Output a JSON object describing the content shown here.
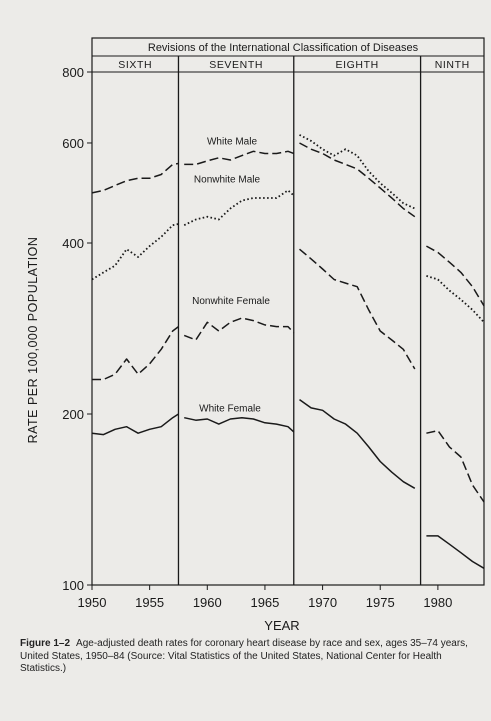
{
  "chart_data": {
    "type": "line",
    "title": "Revisions of the International Classification of Diseases",
    "xlabel": "YEAR",
    "ylabel": "RATE PER 100,000 POPULATION",
    "y_scale": "log",
    "xlim": [
      1950,
      1984
    ],
    "ylim": [
      100,
      800
    ],
    "x_ticks": [
      1950,
      1955,
      1960,
      1965,
      1970,
      1975,
      1980
    ],
    "x_tick_labels": [
      "1950",
      "1955",
      "1960",
      "1965",
      "1970",
      "1975",
      "1980"
    ],
    "y_ticks": [
      100,
      200,
      400,
      600,
      800
    ],
    "y_tick_labels": [
      "100",
      "200",
      "400",
      "600",
      "800"
    ],
    "revisions": [
      {
        "label": "SIXTH",
        "start": 1950,
        "end": 1957.5
      },
      {
        "label": "SEVENTH",
        "start": 1957.5,
        "end": 1967.5
      },
      {
        "label": "EIGHTH",
        "start": 1967.5,
        "end": 1978.5
      },
      {
        "label": "NINTH",
        "start": 1978.5,
        "end": 1984
      }
    ],
    "grid": false,
    "series": [
      {
        "name": "White Male",
        "style": "dashed",
        "segments": [
          [
            [
              1950,
              490
            ],
            [
              1951,
              495
            ],
            [
              1952,
              505
            ],
            [
              1953,
              515
            ],
            [
              1954,
              520
            ],
            [
              1955,
              520
            ],
            [
              1956,
              528
            ],
            [
              1957,
              550
            ],
            [
              1957.5,
              552
            ]
          ],
          [
            [
              1958,
              550
            ],
            [
              1959,
              550
            ],
            [
              1960,
              558
            ],
            [
              1961,
              565
            ],
            [
              1962,
              560
            ],
            [
              1963,
              570
            ],
            [
              1964,
              580
            ],
            [
              1965,
              575
            ],
            [
              1966,
              575
            ],
            [
              1967,
              580
            ],
            [
              1967.5,
              575
            ]
          ],
          [
            [
              1968,
              600
            ],
            [
              1969,
              585
            ],
            [
              1970,
              575
            ],
            [
              1971,
              560
            ],
            [
              1972,
              550
            ],
            [
              1973,
              540
            ],
            [
              1974,
              520
            ],
            [
              1975,
              500
            ],
            [
              1976,
              480
            ],
            [
              1977,
              460
            ],
            [
              1978,
              445
            ]
          ],
          [
            [
              1979,
              395
            ],
            [
              1980,
              385
            ],
            [
              1981,
              370
            ],
            [
              1982,
              355
            ],
            [
              1983,
              335
            ],
            [
              1984,
              310
            ]
          ]
        ]
      },
      {
        "name": "Nonwhite Male",
        "style": "dotted",
        "segments": [
          [
            [
              1950,
              345
            ],
            [
              1951,
              355
            ],
            [
              1952,
              365
            ],
            [
              1953,
              390
            ],
            [
              1954,
              378
            ],
            [
              1955,
              395
            ],
            [
              1956,
              410
            ],
            [
              1957,
              430
            ],
            [
              1957.5,
              432
            ]
          ],
          [
            [
              1958,
              430
            ],
            [
              1959,
              440
            ],
            [
              1960,
              445
            ],
            [
              1961,
              440
            ],
            [
              1962,
              460
            ],
            [
              1963,
              475
            ],
            [
              1964,
              480
            ],
            [
              1965,
              480
            ],
            [
              1966,
              480
            ],
            [
              1967,
              495
            ],
            [
              1967.5,
              485
            ]
          ],
          [
            [
              1968,
              620
            ],
            [
              1969,
              605
            ],
            [
              1970,
              585
            ],
            [
              1971,
              570
            ],
            [
              1972,
              585
            ],
            [
              1973,
              570
            ],
            [
              1974,
              535
            ],
            [
              1975,
              510
            ],
            [
              1976,
              490
            ],
            [
              1977,
              470
            ],
            [
              1978,
              460
            ]
          ],
          [
            [
              1979,
              350
            ],
            [
              1980,
              345
            ],
            [
              1981,
              330
            ],
            [
              1982,
              318
            ],
            [
              1983,
              305
            ],
            [
              1984,
              290
            ]
          ]
        ]
      },
      {
        "name": "Nonwhite Female",
        "style": "dashed",
        "segments": [
          [
            [
              1950,
              230
            ],
            [
              1951,
              230
            ],
            [
              1952,
              235
            ],
            [
              1953,
              250
            ],
            [
              1954,
              235
            ],
            [
              1955,
              245
            ],
            [
              1956,
              260
            ],
            [
              1957,
              280
            ],
            [
              1957.5,
              285
            ]
          ],
          [
            [
              1958,
              275
            ],
            [
              1959,
              270
            ],
            [
              1960,
              290
            ],
            [
              1961,
              280
            ],
            [
              1962,
              290
            ],
            [
              1963,
              295
            ],
            [
              1964,
              292
            ],
            [
              1965,
              287
            ],
            [
              1966,
              285
            ],
            [
              1967,
              285
            ],
            [
              1967.5,
              278
            ]
          ],
          [
            [
              1968,
              390
            ],
            [
              1969,
              375
            ],
            [
              1970,
              360
            ],
            [
              1971,
              345
            ],
            [
              1972,
              340
            ],
            [
              1973,
              335
            ],
            [
              1974,
              305
            ],
            [
              1975,
              280
            ],
            [
              1976,
              270
            ],
            [
              1977,
              260
            ],
            [
              1978,
              240
            ]
          ],
          [
            [
              1979,
              185
            ],
            [
              1980,
              187
            ],
            [
              1981,
              175
            ],
            [
              1982,
              168
            ],
            [
              1983,
              150
            ],
            [
              1984,
              140
            ]
          ]
        ]
      },
      {
        "name": "White Female",
        "style": "solid",
        "segments": [
          [
            [
              1950,
              185
            ],
            [
              1951,
              184
            ],
            [
              1952,
              188
            ],
            [
              1953,
              190
            ],
            [
              1954,
              185
            ],
            [
              1955,
              188
            ],
            [
              1956,
              190
            ],
            [
              1957,
              197
            ],
            [
              1957.5,
              200
            ]
          ],
          [
            [
              1958,
              197
            ],
            [
              1959,
              195
            ],
            [
              1960,
              196
            ],
            [
              1961,
              192
            ],
            [
              1962,
              196
            ],
            [
              1963,
              197
            ],
            [
              1964,
              196
            ],
            [
              1965,
              193
            ],
            [
              1966,
              192
            ],
            [
              1967,
              190
            ],
            [
              1967.5,
              186
            ]
          ],
          [
            [
              1968,
              212
            ],
            [
              1969,
              205
            ],
            [
              1970,
              203
            ],
            [
              1971,
              196
            ],
            [
              1972,
              192
            ],
            [
              1973,
              185
            ],
            [
              1974,
              175
            ],
            [
              1975,
              165
            ],
            [
              1976,
              158
            ],
            [
              1977,
              152
            ],
            [
              1978,
              148
            ]
          ],
          [
            [
              1979,
              122
            ],
            [
              1980,
              122
            ],
            [
              1981,
              118
            ],
            [
              1982,
              114
            ],
            [
              1983,
              110
            ],
            [
              1984,
              107
            ]
          ]
        ]
      }
    ],
    "annotations": [
      {
        "text": "White Male",
        "series": "White Male"
      },
      {
        "text": "Nonwhite Male",
        "series": "Nonwhite Male"
      },
      {
        "text": "Nonwhite Female",
        "series": "Nonwhite Female"
      },
      {
        "text": "White Female",
        "series": "White Female"
      }
    ]
  },
  "caption": {
    "label": "Figure 1–2",
    "text": "Age-adjusted death rates for coronary heart disease by race and sex, ages 35–74 years, United States, 1950–84 (Source: Vital Statistics of the United States, National Center for Health Statistics.)"
  }
}
